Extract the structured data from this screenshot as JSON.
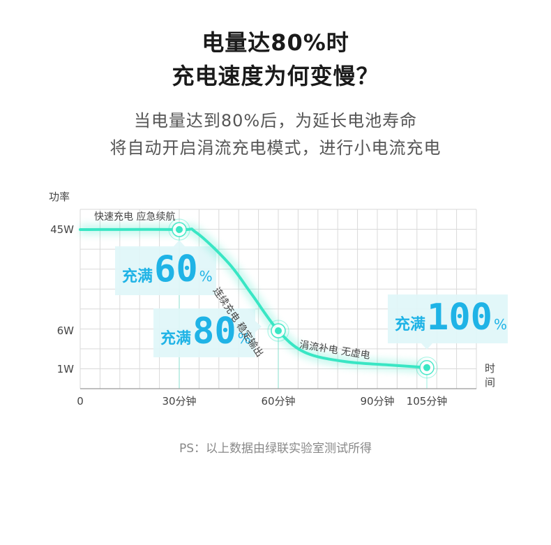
{
  "title": {
    "line1": "电量达80%时",
    "line2": "充电速度为何变慢？"
  },
  "subtitle": {
    "line1": "当电量达到80%后，为延长电池寿命",
    "line2": "将自动开启涓流充电模式，进行小电流充电"
  },
  "footnote": "PS：以上数据由绿联实验室测试所得",
  "colors": {
    "curve": "#39e6c4",
    "badge_text": "#1fb3e6",
    "badge_bg": "#dff6f8",
    "grid": "#d9d9d9"
  },
  "chart_data": {
    "type": "line",
    "ylabel": "功率",
    "xlabel": "时间",
    "xlim": [
      0,
      120
    ],
    "x_ticks": [
      {
        "value": 0,
        "label": "0"
      },
      {
        "value": 30,
        "label": "30分钟"
      },
      {
        "value": 60,
        "label": "60分钟"
      },
      {
        "value": 90,
        "label": "90分钟"
      },
      {
        "value": 105,
        "label": "105分钟"
      }
    ],
    "y_ticks": [
      {
        "value": 45,
        "label": "45W"
      },
      {
        "value": 6,
        "label": "6W"
      },
      {
        "value": 1,
        "label": "1W"
      }
    ],
    "grid": true,
    "series": [
      {
        "points": [
          {
            "x": 0,
            "y": 45
          },
          {
            "x": 30,
            "y": 45
          },
          {
            "x": 35,
            "y": 44
          },
          {
            "x": 45,
            "y": 32
          },
          {
            "x": 52,
            "y": 20
          },
          {
            "x": 60,
            "y": 6
          },
          {
            "x": 68,
            "y": 3.2
          },
          {
            "x": 80,
            "y": 2
          },
          {
            "x": 95,
            "y": 1.5
          },
          {
            "x": 105,
            "y": 1.2
          }
        ]
      }
    ],
    "markers": [
      {
        "x": 30,
        "y": 45
      },
      {
        "x": 60,
        "y": 6
      },
      {
        "x": 105,
        "y": 1.2
      }
    ],
    "phase_labels": [
      {
        "text": "快速充电 应急续航",
        "x": 30,
        "y": 45
      },
      {
        "text": "连续充电 稳定输出",
        "x": 52,
        "y": 20
      },
      {
        "text": "涓流补电 无虚电",
        "x": 80,
        "y": 2
      }
    ],
    "badges": [
      {
        "prefix": "充满",
        "value": "60",
        "suffix": "%",
        "x": 30
      },
      {
        "prefix": "充满",
        "value": "80",
        "suffix": "%",
        "x": 60
      },
      {
        "prefix": "充满",
        "value": "100",
        "suffix": "%",
        "x": 105
      }
    ]
  }
}
